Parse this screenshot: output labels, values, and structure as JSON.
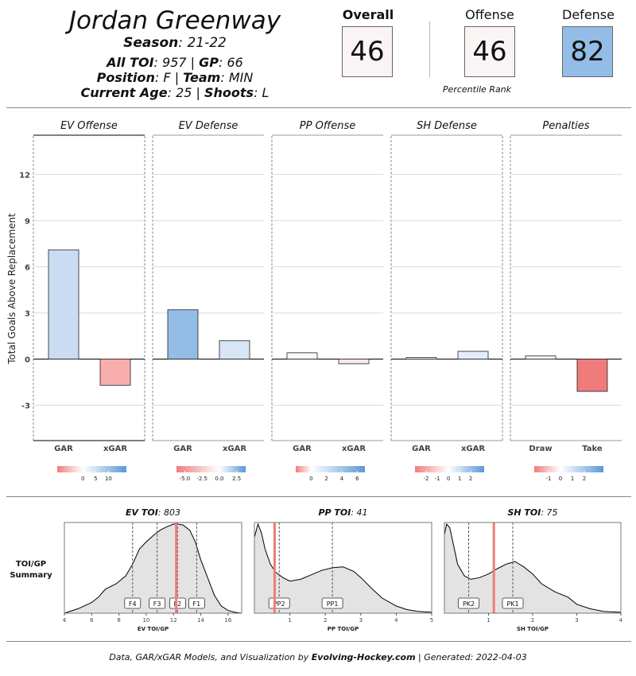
{
  "player": {
    "name": "Jordan Greenway",
    "season_label": "Season",
    "season": "21-22",
    "all_toi_label": "All TOI",
    "all_toi": "957",
    "gp_label": "GP",
    "gp": "66",
    "position_label": "Position",
    "position": "F",
    "team_label": "Team",
    "team": "MIN",
    "age_label": "Current Age",
    "age": "25",
    "shoots_label": "Shoots",
    "shoots": "L"
  },
  "ranks": {
    "overall_label": "Overall",
    "overall": "46",
    "overall_color": "#fbf4f4",
    "offense_label": "Offense",
    "offense": "46",
    "offense_color": "#fbf4f4",
    "defense_label": "Defense",
    "defense": "82",
    "defense_color": "#93bde6",
    "percentile_label": "Percentile Rank"
  },
  "colors": {
    "neg": "#f07d7d",
    "pos": "#5b98d8",
    "neutral": "#ffffff"
  },
  "chart_data": [
    {
      "type": "bar",
      "ylabel": "Total Goals Above Replacement",
      "ylim": [
        -5.3,
        14.5
      ],
      "yticks": [
        -3,
        0,
        3,
        6,
        9,
        12
      ],
      "panels": [
        {
          "title": "EV Offense",
          "categories": [
            "GAR",
            "xGAR"
          ],
          "values": [
            7.1,
            -1.7
          ],
          "fills": [
            "#c9dcf2",
            "#f9aeae"
          ],
          "legend": {
            "min": -10,
            "max": 17,
            "ticks": [
              0,
              5,
              10
            ],
            "tick_labels": [
              "0",
              "5",
              "10"
            ]
          }
        },
        {
          "title": "EV Defense",
          "categories": [
            "GAR",
            "xGAR"
          ],
          "values": [
            3.2,
            1.2
          ],
          "fills": [
            "#93bde6",
            "#d7e5f6"
          ],
          "legend": {
            "min": -6.2,
            "max": 3.8,
            "ticks": [
              -5,
              -2.5,
              0,
              2.5
            ],
            "tick_labels": [
              "-5.0",
              "-2.5",
              "0.0",
              "2.5"
            ]
          }
        },
        {
          "title": "PP Offense",
          "categories": [
            "GAR",
            "xGAR"
          ],
          "values": [
            0.4,
            -0.3
          ],
          "fills": [
            "#f6f9fd",
            "#fde8e8"
          ],
          "legend": {
            "min": -2,
            "max": 7,
            "ticks": [
              0,
              2,
              4,
              6
            ],
            "tick_labels": [
              "0",
              "2",
              "4",
              "6"
            ]
          }
        },
        {
          "title": "SH Defense",
          "categories": [
            "GAR",
            "xGAR"
          ],
          "values": [
            0.1,
            0.5
          ],
          "fills": [
            "#f6f9fd",
            "#e3edf8"
          ],
          "legend": {
            "min": -3,
            "max": 3.2,
            "ticks": [
              -2,
              -1,
              0,
              1,
              2
            ],
            "tick_labels": [
              "-2",
              "-1",
              "0",
              "1",
              "2"
            ]
          }
        },
        {
          "title": "Penalties",
          "categories": [
            "Draw",
            "Take"
          ],
          "values": [
            0.2,
            -2.1
          ],
          "fills": [
            "#ffffff",
            "#ef7b7b"
          ],
          "legend": {
            "min": -2.2,
            "max": 3.6,
            "ticks": [
              -1,
              0,
              1,
              2
            ],
            "tick_labels": [
              "-1",
              "0",
              "1",
              "2"
            ]
          }
        }
      ]
    },
    {
      "type": "area",
      "row_label": "TOI/GP Summary",
      "panels": [
        {
          "title_label": "EV TOI",
          "title_value": "803",
          "xlabel": "EV TOI/GP",
          "xlim": [
            4,
            17
          ],
          "xticks": [
            4,
            6,
            8,
            10,
            12,
            14,
            16
          ],
          "player_value": 12.2,
          "markers": [
            {
              "label": "F4",
              "x": 9.0
            },
            {
              "label": "F3",
              "x": 10.8
            },
            {
              "label": "F2",
              "x": 12.3
            },
            {
              "label": "F1",
              "x": 13.7
            }
          ],
          "density_x": [
            4.0,
            5.0,
            6.0,
            6.5,
            7.0,
            7.8,
            8.5,
            9.0,
            9.5,
            10.0,
            10.5,
            11.0,
            11.5,
            12.0,
            12.3,
            12.7,
            13.2,
            13.6,
            14.0,
            14.5,
            15.0,
            15.5,
            16.0,
            16.5,
            17.0
          ],
          "density_y": [
            0.0,
            0.05,
            0.12,
            0.18,
            0.27,
            0.33,
            0.42,
            0.55,
            0.72,
            0.8,
            0.87,
            0.93,
            0.97,
            1.0,
            1.0,
            0.99,
            0.93,
            0.8,
            0.6,
            0.4,
            0.2,
            0.08,
            0.03,
            0.01,
            0.0
          ]
        },
        {
          "title_label": "PP TOI",
          "title_value": "41",
          "xlabel": "PP TOI/GP",
          "xlim": [
            0,
            5
          ],
          "xticks": [
            1,
            2,
            3,
            4,
            5
          ],
          "player_value": 0.57,
          "markers": [
            {
              "label": "PP2",
              "x": 0.7
            },
            {
              "label": "PP1",
              "x": 2.2
            }
          ],
          "density_x": [
            0.0,
            0.1,
            0.2,
            0.3,
            0.45,
            0.6,
            0.8,
            1.0,
            1.3,
            1.6,
            1.9,
            2.2,
            2.5,
            2.8,
            3.0,
            3.3,
            3.6,
            4.0,
            4.3,
            4.6,
            5.0
          ],
          "density_y": [
            0.85,
            1.0,
            0.9,
            0.72,
            0.55,
            0.46,
            0.4,
            0.36,
            0.38,
            0.43,
            0.48,
            0.51,
            0.52,
            0.47,
            0.4,
            0.28,
            0.17,
            0.08,
            0.04,
            0.02,
            0.01
          ]
        },
        {
          "title_label": "SH TOI",
          "title_value": "75",
          "xlabel": "SH TOI/GP",
          "xlim": [
            0,
            4
          ],
          "xticks": [
            1,
            2,
            3,
            4
          ],
          "player_value": 1.12,
          "markers": [
            {
              "label": "PK2",
              "x": 0.55
            },
            {
              "label": "PK1",
              "x": 1.55
            }
          ],
          "density_x": [
            0.0,
            0.05,
            0.12,
            0.2,
            0.3,
            0.45,
            0.6,
            0.8,
            1.0,
            1.2,
            1.4,
            1.6,
            1.8,
            2.0,
            2.2,
            2.5,
            2.8,
            3.0,
            3.3,
            3.6,
            4.0
          ],
          "density_y": [
            0.88,
            1.0,
            0.96,
            0.78,
            0.55,
            0.42,
            0.38,
            0.4,
            0.44,
            0.5,
            0.55,
            0.58,
            0.52,
            0.44,
            0.33,
            0.24,
            0.18,
            0.1,
            0.05,
            0.02,
            0.01
          ]
        }
      ]
    }
  ],
  "footer": {
    "prefix": "Data, GAR/xGAR Models, and Visualization by ",
    "site": "Evolving-Hockey.com",
    "suffix": " | Generated: 2022-04-03"
  }
}
